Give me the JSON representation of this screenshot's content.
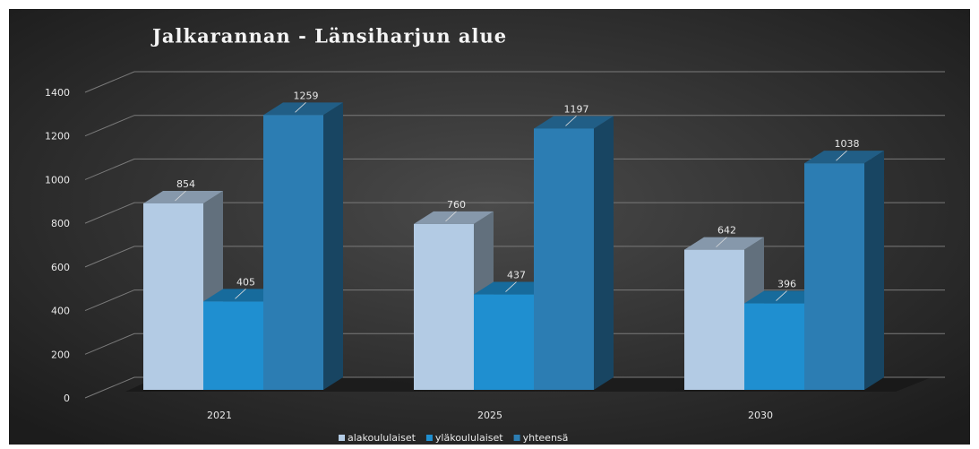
{
  "chart_data": {
    "type": "bar3d",
    "title": "Jalkarannan - Länsiharjun alue",
    "categories": [
      "2021",
      "2025",
      "2030"
    ],
    "series": [
      {
        "name": "alakoululaiset",
        "color": "#b3cbe4",
        "values": [
          854,
          760,
          642
        ]
      },
      {
        "name": "yläkoululaiset",
        "color": "#1f8fd0",
        "values": [
          405,
          437,
          396
        ]
      },
      {
        "name": "yhteensä",
        "color": "#2c7db3",
        "values": [
          1259,
          1197,
          1038
        ]
      }
    ],
    "ylim": [
      0,
      1400
    ],
    "yticks": [
      0,
      200,
      400,
      600,
      800,
      1000,
      1200,
      1400
    ],
    "grid": true
  }
}
